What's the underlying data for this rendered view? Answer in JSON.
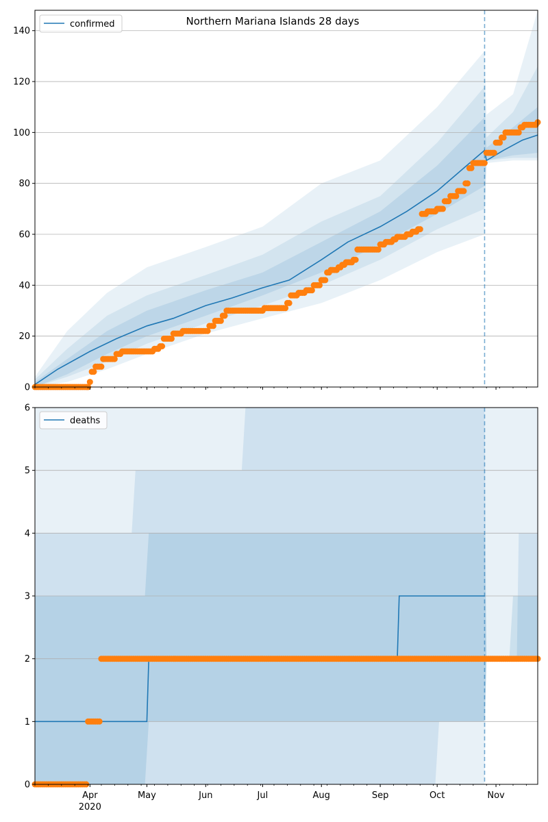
{
  "chart_data": [
    {
      "type": "line",
      "title": "Northern Mariana Islands 28 days",
      "legend": {
        "entries": [
          "confirmed"
        ],
        "placement": "upper-left"
      },
      "xlabel": "",
      "ylabel": "",
      "grid": "horizontal",
      "xlim": [
        "2020-03-03",
        "2020-11-23"
      ],
      "ylim": [
        0,
        148
      ],
      "y_ticks": [
        0,
        20,
        40,
        60,
        80,
        100,
        120,
        140
      ],
      "x_ticks": [
        {
          "date": "2020-04-01",
          "label": "Apr",
          "year": "2020"
        },
        {
          "date": "2020-05-01",
          "label": "May"
        },
        {
          "date": "2020-06-01",
          "label": "Jun"
        },
        {
          "date": "2020-07-01",
          "label": "Jul"
        },
        {
          "date": "2020-08-01",
          "label": "Aug"
        },
        {
          "date": "2020-09-01",
          "label": "Sep"
        },
        {
          "date": "2020-10-01",
          "label": "Oct"
        },
        {
          "date": "2020-11-01",
          "label": "Nov"
        }
      ],
      "forecast_start": "2020-10-26",
      "model_line": {
        "name": "confirmed",
        "color": "#1f77b4",
        "points": [
          [
            "2020-03-03",
            1
          ],
          [
            "2020-03-15",
            7
          ],
          [
            "2020-04-01",
            14
          ],
          [
            "2020-04-15",
            19
          ],
          [
            "2020-05-01",
            24
          ],
          [
            "2020-05-15",
            27
          ],
          [
            "2020-06-01",
            32
          ],
          [
            "2020-06-15",
            35
          ],
          [
            "2020-07-01",
            39
          ],
          [
            "2020-07-15",
            42
          ],
          [
            "2020-08-01",
            50
          ],
          [
            "2020-08-15",
            57
          ],
          [
            "2020-09-01",
            63
          ],
          [
            "2020-09-15",
            69
          ],
          [
            "2020-10-01",
            77
          ],
          [
            "2020-10-15",
            86
          ],
          [
            "2020-10-26",
            93
          ],
          [
            "2020-10-27",
            89
          ],
          [
            "2020-11-05",
            93
          ],
          [
            "2020-11-15",
            97
          ],
          [
            "2020-11-23",
            99
          ]
        ]
      },
      "observed": {
        "name": "observed confirmed",
        "color": "#ff7f0e",
        "points": [
          [
            "2020-03-03",
            0
          ],
          [
            "2020-03-31",
            0
          ],
          [
            "2020-04-01",
            2
          ],
          [
            "2020-04-02",
            6
          ],
          [
            "2020-04-04",
            8
          ],
          [
            "2020-04-08",
            11
          ],
          [
            "2020-04-15",
            13
          ],
          [
            "2020-04-18",
            14
          ],
          [
            "2020-05-05",
            15
          ],
          [
            "2020-05-08",
            16
          ],
          [
            "2020-05-10",
            19
          ],
          [
            "2020-05-15",
            21
          ],
          [
            "2020-05-20",
            22
          ],
          [
            "2020-06-01",
            22
          ],
          [
            "2020-06-03",
            24
          ],
          [
            "2020-06-06",
            26
          ],
          [
            "2020-06-10",
            28
          ],
          [
            "2020-06-12",
            30
          ],
          [
            "2020-07-01",
            30
          ],
          [
            "2020-07-02",
            31
          ],
          [
            "2020-07-12",
            31
          ],
          [
            "2020-07-14",
            33
          ],
          [
            "2020-07-16",
            36
          ],
          [
            "2020-07-20",
            37
          ],
          [
            "2020-07-24",
            38
          ],
          [
            "2020-07-28",
            40
          ],
          [
            "2020-08-01",
            42
          ],
          [
            "2020-08-04",
            45
          ],
          [
            "2020-08-06",
            46
          ],
          [
            "2020-08-10",
            47
          ],
          [
            "2020-08-12",
            48
          ],
          [
            "2020-08-14",
            49
          ],
          [
            "2020-08-18",
            50
          ],
          [
            "2020-08-20",
            54
          ],
          [
            "2020-08-31",
            54
          ],
          [
            "2020-09-01",
            56
          ],
          [
            "2020-09-04",
            57
          ],
          [
            "2020-09-08",
            58
          ],
          [
            "2020-09-10",
            59
          ],
          [
            "2020-09-15",
            60
          ],
          [
            "2020-09-18",
            61
          ],
          [
            "2020-09-21",
            62
          ],
          [
            "2020-09-23",
            68
          ],
          [
            "2020-09-26",
            69
          ],
          [
            "2020-10-01",
            70
          ],
          [
            "2020-10-05",
            73
          ],
          [
            "2020-10-08",
            75
          ],
          [
            "2020-10-12",
            77
          ],
          [
            "2020-10-16",
            80
          ],
          [
            "2020-10-18",
            86
          ],
          [
            "2020-10-20",
            88
          ],
          [
            "2020-10-26",
            88
          ],
          [
            "2020-10-27",
            92
          ],
          [
            "2020-10-30",
            92
          ],
          [
            "2020-11-01",
            96
          ],
          [
            "2020-11-04",
            98
          ],
          [
            "2020-11-06",
            100
          ],
          [
            "2020-11-12",
            100
          ],
          [
            "2020-11-14",
            102
          ],
          [
            "2020-11-16",
            103
          ],
          [
            "2020-11-22",
            103
          ],
          [
            "2020-11-23",
            104
          ]
        ]
      },
      "bands": [
        {
          "name": "outer",
          "opacity": 0.1,
          "x": [
            "2020-03-03",
            "2020-03-20",
            "2020-04-10",
            "2020-05-01",
            "2020-06-01",
            "2020-07-01",
            "2020-08-01",
            "2020-09-01",
            "2020-10-01",
            "2020-10-26",
            "2020-10-27",
            "2020-11-10",
            "2020-11-23"
          ],
          "lower": [
            0,
            2,
            7,
            13,
            21,
            27,
            33,
            42,
            53,
            60,
            88,
            89,
            89
          ],
          "upper": [
            4,
            22,
            37,
            47,
            55,
            63,
            80,
            89,
            110,
            132,
            107,
            115,
            150
          ]
        },
        {
          "name": "middle",
          "opacity": 0.1,
          "x": [
            "2020-03-03",
            "2020-03-20",
            "2020-04-10",
            "2020-05-01",
            "2020-06-01",
            "2020-07-01",
            "2020-08-01",
            "2020-09-01",
            "2020-10-01",
            "2020-10-26",
            "2020-10-27",
            "2020-11-10",
            "2020-11-23"
          ],
          "lower": [
            0,
            4,
            10,
            17,
            25,
            32,
            40,
            50,
            62,
            70,
            89,
            90,
            90
          ],
          "upper": [
            3,
            15,
            28,
            36,
            44,
            52,
            65,
            75,
            96,
            118,
            98,
            108,
            126
          ]
        },
        {
          "name": "inner",
          "opacity": 0.12,
          "x": [
            "2020-03-03",
            "2020-03-20",
            "2020-04-10",
            "2020-05-01",
            "2020-06-01",
            "2020-07-01",
            "2020-08-01",
            "2020-09-01",
            "2020-10-01",
            "2020-10-26",
            "2020-10-27",
            "2020-11-10",
            "2020-11-23"
          ],
          "lower": [
            0,
            5,
            13,
            20,
            28,
            36,
            45,
            56,
            68,
            79,
            89,
            91,
            92
          ],
          "upper": [
            2,
            11,
            22,
            30,
            38,
            45,
            57,
            69,
            87,
            106,
            94,
            102,
            110
          ]
        }
      ]
    },
    {
      "type": "line",
      "title": "",
      "legend": {
        "entries": [
          "deaths"
        ],
        "placement": "upper-left"
      },
      "xlabel": "",
      "ylabel": "",
      "grid": "horizontal",
      "xlim": [
        "2020-03-03",
        "2020-11-23"
      ],
      "ylim": [
        0,
        6
      ],
      "y_ticks": [
        0,
        1,
        2,
        3,
        4,
        5,
        6
      ],
      "x_ticks": [
        {
          "date": "2020-04-01",
          "label": "Apr",
          "year": "2020"
        },
        {
          "date": "2020-05-01",
          "label": "May"
        },
        {
          "date": "2020-06-01",
          "label": "Jun"
        },
        {
          "date": "2020-07-01",
          "label": "Jul"
        },
        {
          "date": "2020-08-01",
          "label": "Aug"
        },
        {
          "date": "2020-09-01",
          "label": "Sep"
        },
        {
          "date": "2020-10-01",
          "label": "Oct"
        },
        {
          "date": "2020-11-01",
          "label": "Nov"
        }
      ],
      "forecast_start": "2020-10-26",
      "model_line": {
        "name": "deaths",
        "color": "#1f77b4",
        "points": [
          [
            "2020-03-03",
            1
          ],
          [
            "2020-05-01",
            1
          ],
          [
            "2020-05-02",
            2
          ],
          [
            "2020-09-10",
            2
          ],
          [
            "2020-09-11",
            3
          ],
          [
            "2020-10-26",
            3
          ]
        ]
      },
      "observed": {
        "name": "observed deaths",
        "color": "#ff7f0e",
        "points": [
          [
            "2020-03-03",
            0
          ],
          [
            "2020-03-30",
            0
          ],
          [
            "2020-03-31",
            1
          ],
          [
            "2020-04-06",
            1
          ],
          [
            "2020-04-07",
            2
          ],
          [
            "2020-11-23",
            2
          ]
        ]
      },
      "bands": [
        {
          "name": "outer",
          "opacity": 0.1,
          "x": [
            "2020-03-03",
            "2020-05-01",
            "2020-05-02",
            "2020-06-20",
            "2020-06-21",
            "2020-10-01",
            "2020-10-26",
            "2020-10-27",
            "2020-11-23"
          ],
          "lower": [
            0,
            0,
            0,
            0,
            0,
            0,
            0,
            2,
            2
          ],
          "upper": [
            6,
            6,
            6,
            6,
            6,
            6,
            6,
            6,
            6
          ]
        },
        {
          "name": "middle",
          "opacity": 0.12,
          "x": [
            "2020-03-03",
            "2020-04-23",
            "2020-04-25",
            "2020-06-20",
            "2020-06-22",
            "2020-09-30",
            "2020-10-02",
            "2020-10-26",
            "2020-10-27",
            "2020-11-12",
            "2020-11-13",
            "2020-11-23"
          ],
          "lower": [
            0,
            0,
            0,
            0,
            0,
            0,
            1,
            1,
            2,
            2,
            2,
            2
          ],
          "upper": [
            4,
            4,
            5,
            5,
            6,
            6,
            6,
            6,
            2,
            2,
            4,
            4
          ]
        },
        {
          "name": "inner",
          "opacity": 0.14,
          "x": [
            "2020-03-03",
            "2020-04-04",
            "2020-04-06",
            "2020-04-30",
            "2020-05-02",
            "2020-06-20",
            "2020-06-22",
            "2020-10-20",
            "2020-10-22",
            "2020-10-26",
            "2020-10-27",
            "2020-11-08",
            "2020-11-10",
            "2020-11-23"
          ],
          "lower": [
            0,
            0,
            0,
            0,
            1,
            1,
            1,
            1,
            1,
            1,
            2,
            2,
            2,
            2
          ],
          "upper": [
            3,
            3,
            3,
            3,
            4,
            4,
            4,
            4,
            4,
            4,
            2,
            2,
            3,
            3
          ]
        }
      ]
    }
  ]
}
